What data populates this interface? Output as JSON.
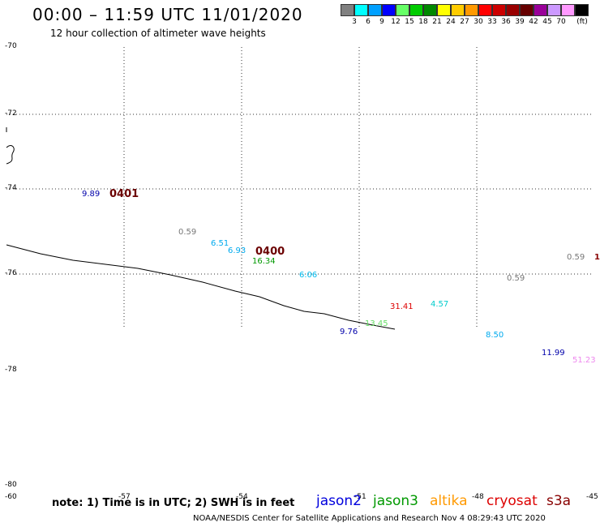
{
  "header": {
    "title": "00:00 – 11:59 UTC 11/01/2020",
    "subtitle": "12 hour collection of altimeter wave heights"
  },
  "legend": {
    "unit_label": "(ft)",
    "swatches": [
      {
        "color": "#808080",
        "label": ""
      },
      {
        "color": "#00ffff",
        "label": "3"
      },
      {
        "color": "#00a0ff",
        "label": "6"
      },
      {
        "color": "#0000ff",
        "label": "9"
      },
      {
        "color": "#66ff66",
        "label": "12"
      },
      {
        "color": "#00cc00",
        "label": "15"
      },
      {
        "color": "#008800",
        "label": "18"
      },
      {
        "color": "#ffff00",
        "label": "21"
      },
      {
        "color": "#ffcc00",
        "label": "24"
      },
      {
        "color": "#ff9900",
        "label": "27"
      },
      {
        "color": "#ff0000",
        "label": "30"
      },
      {
        "color": "#cc0000",
        "label": "33"
      },
      {
        "color": "#990000",
        "label": "36"
      },
      {
        "color": "#660000",
        "label": "39"
      },
      {
        "color": "#990099",
        "label": "42"
      },
      {
        "color": "#cc99ff",
        "label": "45"
      },
      {
        "color": "#ff99ff",
        "label": "70"
      },
      {
        "color": "#000000",
        "label": ""
      }
    ]
  },
  "axes": {
    "y_labels": [
      "-70",
      "-72",
      "-74",
      "-76",
      "-78",
      "-80"
    ],
    "x_labels": [
      "-60",
      "-57",
      "-54",
      "-51",
      "-48",
      "-45"
    ]
  },
  "observations": [
    {
      "value": "9.89",
      "color": "#0000aa"
    },
    {
      "value": "0.59",
      "color": "#777777"
    },
    {
      "value": "6.51",
      "color": "#00aaee"
    },
    {
      "value": "6.93",
      "color": "#00aaee"
    },
    {
      "value": "16.34",
      "color": "#009900"
    },
    {
      "value": "6.06",
      "color": "#00bbee"
    },
    {
      "value": "31.41",
      "color": "#dd0000"
    },
    {
      "value": "4.57",
      "color": "#00cccc"
    },
    {
      "value": "0.59",
      "color": "#777777"
    },
    {
      "value": "0.59",
      "color": "#777777"
    },
    {
      "value": "13.45",
      "color": "#66dd66"
    },
    {
      "value": "9.76",
      "color": "#0000aa"
    },
    {
      "value": "8.50",
      "color": "#00aaee"
    },
    {
      "value": "11.99",
      "color": "#0000aa"
    },
    {
      "value": "51.23",
      "color": "#ee88ee"
    },
    {
      "value": "1",
      "color": "#880000"
    }
  ],
  "time_labels": [
    "0401",
    "0400"
  ],
  "footer": {
    "note": "note: 1) Time is in UTC; 2) SWH is in feet",
    "satellites": [
      {
        "name": "jason2",
        "color": "#0000dd"
      },
      {
        "name": "jason3",
        "color": "#009900"
      },
      {
        "name": "altika",
        "color": "#ff9900"
      },
      {
        "name": "cryosat",
        "color": "#dd0000"
      },
      {
        "name": "s3a",
        "color": "#880000"
      }
    ],
    "credit": "NOAA/NESDIS Center for Satellite Applications and Research    Nov  4 08:29:43 UTC 2020"
  }
}
